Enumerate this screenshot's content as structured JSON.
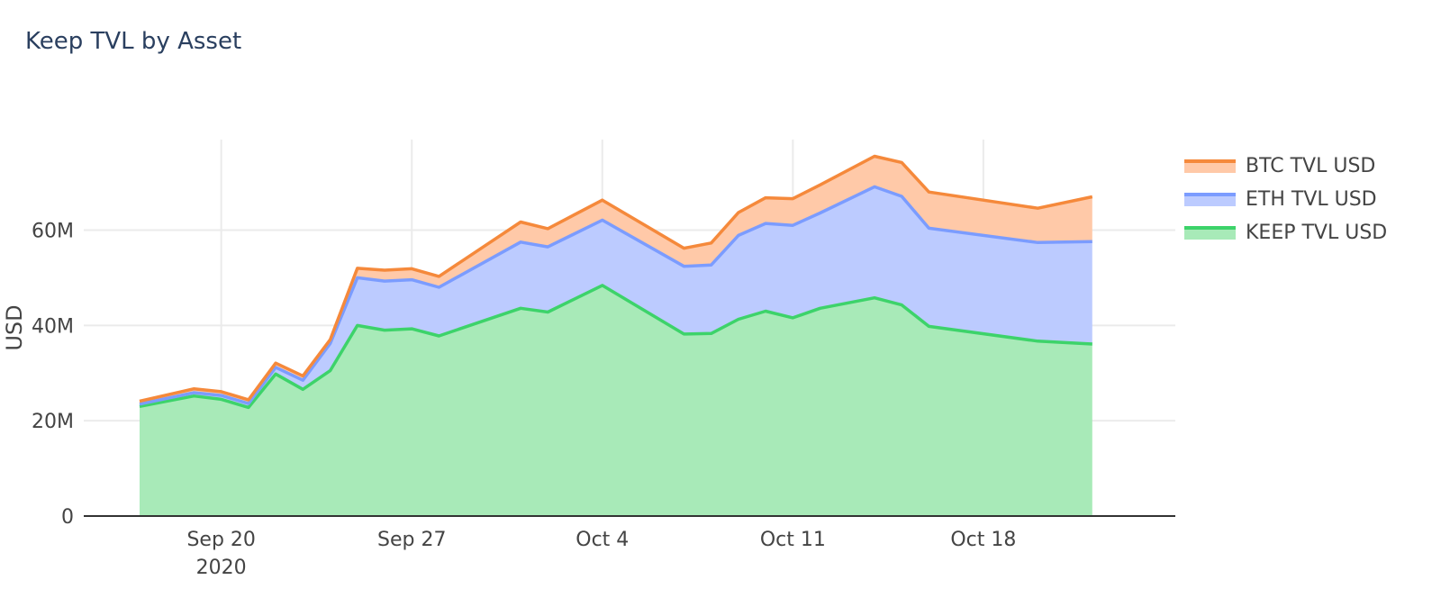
{
  "chart_data": {
    "type": "area",
    "stacked": true,
    "title": "Keep TVL by Asset",
    "xlabel": "",
    "ylabel": "USD",
    "xlim": [
      "2020-09-17",
      "2020-10-23"
    ],
    "ylim": [
      0,
      79000000
    ],
    "x_ticks": [
      {
        "date": "2020-09-20",
        "label": "Sep 20",
        "sublabel": "2020"
      },
      {
        "date": "2020-09-27",
        "label": "Sep 27",
        "sublabel": ""
      },
      {
        "date": "2020-10-04",
        "label": "Oct 4",
        "sublabel": ""
      },
      {
        "date": "2020-10-11",
        "label": "Oct 11",
        "sublabel": ""
      },
      {
        "date": "2020-10-18",
        "label": "Oct 18",
        "sublabel": ""
      }
    ],
    "y_ticks": [
      {
        "value": 0,
        "label": "0"
      },
      {
        "value": 20000000,
        "label": "20M"
      },
      {
        "value": 40000000,
        "label": "40M"
      },
      {
        "value": 60000000,
        "label": "60M"
      }
    ],
    "grid": true,
    "legend_position": "right-top",
    "x": [
      "2020-09-17",
      "2020-09-19",
      "2020-09-20",
      "2020-09-21",
      "2020-09-22",
      "2020-09-23",
      "2020-09-24",
      "2020-09-25",
      "2020-09-26",
      "2020-09-27",
      "2020-09-28",
      "2020-10-01",
      "2020-10-02",
      "2020-10-04",
      "2020-10-07",
      "2020-10-08",
      "2020-10-09",
      "2020-10-10",
      "2020-10-11",
      "2020-10-12",
      "2020-10-14",
      "2020-10-15",
      "2020-10-16",
      "2020-10-20",
      "2020-10-22"
    ],
    "series": [
      {
        "name": "KEEP TVL USD",
        "line_color": "#3dd36a",
        "fill_color": "#a8eab8",
        "values": [
          23000000,
          25200000,
          24500000,
          22800000,
          29800000,
          26600000,
          30500000,
          40000000,
          39000000,
          39300000,
          37800000,
          43600000,
          42800000,
          48400000,
          38200000,
          38300000,
          41300000,
          43000000,
          41600000,
          43600000,
          45800000,
          44300000,
          39800000,
          36700000,
          36100000
        ]
      },
      {
        "name": "ETH TVL USD",
        "line_color": "#7b9cff",
        "fill_color": "#bccbff",
        "values": [
          500000,
          700000,
          800000,
          800000,
          1400000,
          1900000,
          5700000,
          10000000,
          10300000,
          10300000,
          10200000,
          13900000,
          13700000,
          13700000,
          14200000,
          14400000,
          17600000,
          18400000,
          19400000,
          20000000,
          23300000,
          22800000,
          20600000,
          20700000,
          21500000
        ]
      },
      {
        "name": "BTC TVL USD",
        "line_color": "#f5893b",
        "fill_color": "#ffc9a8",
        "values": [
          600000,
          800000,
          800000,
          800000,
          900000,
          900000,
          800000,
          2000000,
          2300000,
          2300000,
          2300000,
          4200000,
          3800000,
          4200000,
          3800000,
          4600000,
          4800000,
          5400000,
          5600000,
          5900000,
          6400000,
          7100000,
          7600000,
          7200000,
          9400000
        ]
      }
    ]
  }
}
